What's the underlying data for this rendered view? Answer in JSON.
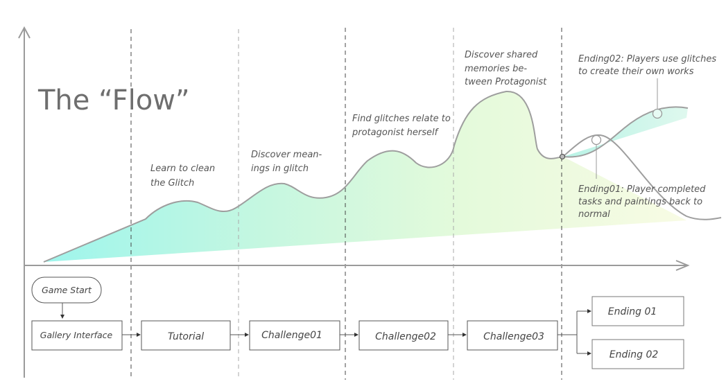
{
  "title": "The “Flow”",
  "annotations": {
    "learn_clean": [
      "Learn to clean",
      "the Glitch"
    ],
    "discover_meanings": [
      "Discover mean-",
      "ings in glitch"
    ],
    "find_glitches": [
      "Find glitches relate to",
      "protagonist herself"
    ],
    "discover_shared": [
      "Discover shared",
      "memories be-",
      "tween Protagonist"
    ],
    "ending02": [
      "Ending02: Players use glitches",
      "to create their own works"
    ],
    "ending01": [
      "Ending01: Player completed",
      "tasks and paintings back to",
      "normal"
    ]
  },
  "nodes": {
    "game_start": "Game Start",
    "gallery": "Gallery Interface",
    "tutorial": "Tutorial",
    "challenge01": "Challenge01",
    "challenge02": "Challenge02",
    "challenge03": "Challenge03",
    "ending01": "Ending 01",
    "ending02": "Ending 02"
  },
  "colors": {
    "flow_start": "#9ef5ec",
    "flow_mid": "#d8f9d6",
    "flow_end": "#f6fbe0",
    "curve": "#9e9e9e",
    "axis": "#9a9a9a"
  }
}
